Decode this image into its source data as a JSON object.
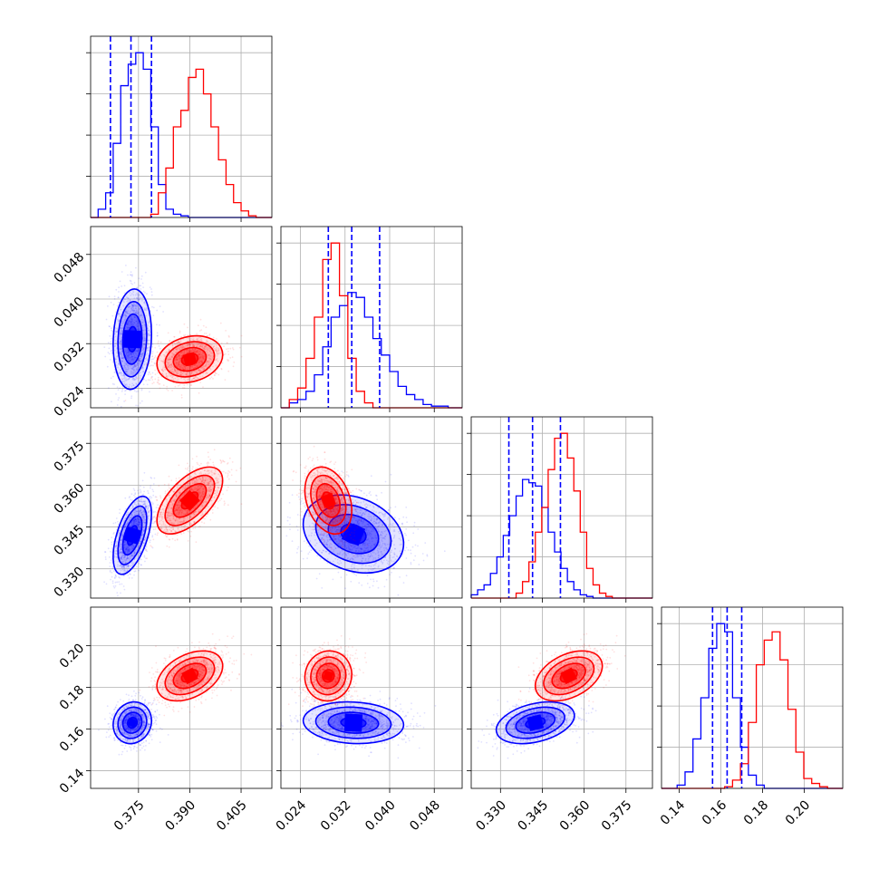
{
  "chart_data": {
    "type": "corner",
    "title": "",
    "grid": true,
    "series": [
      {
        "color": "#0000ff"
      },
      {
        "color": "#ff0000"
      }
    ],
    "parameters": [
      {
        "ticks": [
          0.375,
          0.39,
          0.405
        ],
        "tick_labels": [
          "0.375",
          "0.390",
          "0.405"
        ],
        "range": [
          0.361,
          0.414
        ]
      },
      {
        "ticks": [
          0.024,
          0.032,
          0.04,
          0.048
        ],
        "tick_labels": [
          "0.024",
          "0.032",
          "0.040",
          "0.048"
        ],
        "range": [
          0.0205,
          0.053
        ]
      },
      {
        "ticks": [
          0.33,
          0.345,
          0.36,
          0.375
        ],
        "tick_labels": [
          "0.330",
          "0.345",
          "0.360",
          "0.375"
        ],
        "range": [
          0.3195,
          0.3845
        ]
      },
      {
        "ticks": [
          0.14,
          0.16,
          0.18,
          0.2
        ],
        "tick_labels": [
          "0.14",
          "0.16",
          "0.18",
          "0.20"
        ],
        "range": [
          0.1315,
          0.2185
        ]
      }
    ],
    "histograms": [
      {
        "edges": [
          0.361,
          0.3632,
          0.3654,
          0.3676,
          0.3698,
          0.372,
          0.3742,
          0.3764,
          0.3786,
          0.3808,
          0.383,
          0.3852,
          0.3874,
          0.3896,
          0.3918,
          0.394,
          0.3962,
          0.3984,
          0.4006,
          0.4028,
          0.405,
          0.4072,
          0.4094,
          0.414
        ],
        "blue": [
          0.0,
          0.05,
          0.15,
          0.45,
          0.8,
          0.93,
          1.0,
          0.9,
          0.55,
          0.2,
          0.05,
          0.02,
          0.01,
          0,
          0,
          0,
          0,
          0,
          0,
          0,
          0,
          0,
          0
        ],
        "red": [
          0,
          0,
          0,
          0,
          0,
          0,
          0,
          0,
          0.02,
          0.15,
          0.3,
          0.55,
          0.65,
          0.85,
          0.9,
          0.75,
          0.55,
          0.35,
          0.2,
          0.09,
          0.04,
          0.01,
          0
        ],
        "quantiles": [
          0.3668,
          0.3728,
          0.3788
        ]
      },
      {
        "edges": [
          0.0205,
          0.022,
          0.0235,
          0.025,
          0.0265,
          0.028,
          0.0295,
          0.031,
          0.0325,
          0.034,
          0.0355,
          0.037,
          0.0385,
          0.04,
          0.0415,
          0.043,
          0.0445,
          0.046,
          0.0475,
          0.049,
          0.0505,
          0.053
        ],
        "blue": [
          0,
          0.03,
          0.05,
          0.1,
          0.2,
          0.37,
          0.55,
          0.62,
          0.7,
          0.67,
          0.55,
          0.42,
          0.32,
          0.22,
          0.13,
          0.08,
          0.05,
          0.02,
          0.01,
          0.01,
          0
        ],
        "red": [
          0,
          0.05,
          0.12,
          0.3,
          0.55,
          0.9,
          1.0,
          0.68,
          0.3,
          0.1,
          0.03,
          0,
          0,
          0,
          0,
          0,
          0,
          0,
          0,
          0,
          0
        ],
        "quantiles": [
          0.029,
          0.0332,
          0.0382
        ]
      },
      {
        "edges": [
          0.3195,
          0.3218,
          0.3241,
          0.3264,
          0.3287,
          0.331,
          0.3333,
          0.3356,
          0.3379,
          0.3402,
          0.3425,
          0.3448,
          0.3471,
          0.3494,
          0.3517,
          0.354,
          0.3563,
          0.3586,
          0.3609,
          0.3632,
          0.3655,
          0.3678,
          0.3701,
          0.3724,
          0.3845
        ],
        "blue": [
          0.02,
          0.05,
          0.08,
          0.15,
          0.25,
          0.38,
          0.5,
          0.62,
          0.72,
          0.7,
          0.68,
          0.55,
          0.4,
          0.28,
          0.18,
          0.1,
          0.05,
          0.02,
          0.01,
          0,
          0,
          0,
          0,
          0
        ],
        "red": [
          0,
          0,
          0,
          0,
          0,
          0,
          0,
          0.03,
          0.1,
          0.22,
          0.4,
          0.55,
          0.78,
          0.97,
          1.0,
          0.85,
          0.65,
          0.4,
          0.18,
          0.08,
          0.03,
          0.01,
          0,
          0
        ],
        "quantiles": [
          0.333,
          0.3415,
          0.3515
        ]
      },
      {
        "edges": [
          0.1315,
          0.139,
          0.1428,
          0.1466,
          0.1504,
          0.1542,
          0.158,
          0.1618,
          0.1656,
          0.1694,
          0.1732,
          0.177,
          0.1808,
          0.1846,
          0.1884,
          0.1922,
          0.196,
          0.1998,
          0.2036,
          0.2074,
          0.2112,
          0.2185
        ],
        "blue": [
          0,
          0.02,
          0.1,
          0.3,
          0.55,
          0.85,
          1.0,
          0.95,
          0.55,
          0.25,
          0.08,
          0.02,
          0,
          0,
          0,
          0,
          0,
          0,
          0,
          0,
          0
        ],
        "red": [
          0,
          0,
          0,
          0,
          0,
          0,
          0,
          0.01,
          0.05,
          0.15,
          0.4,
          0.75,
          0.9,
          0.95,
          0.78,
          0.48,
          0.22,
          0.06,
          0.03,
          0.01,
          0
        ],
        "quantiles": [
          0.156,
          0.163,
          0.17
        ]
      }
    ],
    "scatter_panels": [
      {
        "x_param": 0,
        "y_param": 1,
        "blue": {
          "mean": [
            0.3732,
            0.0328
          ],
          "sd": [
            0.0028,
            0.0045
          ],
          "rho": 0.1
        },
        "red": {
          "mean": [
            0.39,
            0.0292
          ],
          "sd": [
            0.0048,
            0.0021
          ],
          "rho": 0.2
        }
      },
      {
        "x_param": 0,
        "y_param": 2,
        "blue": {
          "mean": [
            0.3732,
            0.342
          ],
          "sd": [
            0.0028,
            0.007
          ],
          "rho": 0.55
        },
        "red": {
          "mean": [
            0.39,
            0.3545
          ],
          "sd": [
            0.0048,
            0.006
          ],
          "rho": 0.6
        }
      },
      {
        "x_param": 1,
        "y_param": 2,
        "blue": {
          "mean": [
            0.0335,
            0.3425
          ],
          "sd": [
            0.0045,
            0.007
          ],
          "rho": -0.25
        },
        "red": {
          "mean": [
            0.029,
            0.3545
          ],
          "sd": [
            0.0021,
            0.006
          ],
          "rho": -0.3
        }
      },
      {
        "x_param": 0,
        "y_param": 3,
        "blue": {
          "mean": [
            0.3732,
            0.163
          ],
          "sd": [
            0.0028,
            0.005
          ],
          "rho": 0.1
        },
        "red": {
          "mean": [
            0.39,
            0.1855
          ],
          "sd": [
            0.0048,
            0.006
          ],
          "rho": 0.4
        }
      },
      {
        "x_param": 1,
        "y_param": 3,
        "blue": {
          "mean": [
            0.0335,
            0.163
          ],
          "sd": [
            0.0045,
            0.005
          ],
          "rho": -0.1
        },
        "red": {
          "mean": [
            0.029,
            0.1855
          ],
          "sd": [
            0.0021,
            0.006
          ],
          "rho": 0.05
        }
      },
      {
        "x_param": 2,
        "y_param": 3,
        "blue": {
          "mean": [
            0.3425,
            0.163
          ],
          "sd": [
            0.007,
            0.005
          ],
          "rho": 0.35
        },
        "red": {
          "mean": [
            0.3545,
            0.1855
          ],
          "sd": [
            0.006,
            0.006
          ],
          "rho": 0.4
        }
      }
    ]
  }
}
